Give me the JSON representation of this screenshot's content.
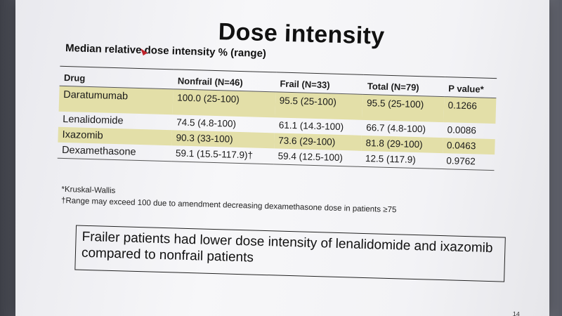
{
  "slide": {
    "title": "Dose intensity",
    "subtitle": "Median relative dose intensity % (range)",
    "page_number": "14"
  },
  "table": {
    "headers": [
      "Drug",
      "Nonfrail (N=46)",
      "Frail (N=33)",
      "Total (N=79)",
      "P value*"
    ],
    "rows": [
      {
        "drug": "Daratumumab",
        "nonfrail": "100.0 (25-100)",
        "frail": "95.5 (25-100)",
        "total": "95.5 (25-100)",
        "p": "0.1266"
      },
      {
        "drug": "Lenalidomide",
        "nonfrail": "74.5 (4.8-100)",
        "frail": "61.1 (14.3-100)",
        "total": "66.7 (4.8-100)",
        "p": "0.0086"
      },
      {
        "drug": "Ixazomib",
        "nonfrail": "90.3 (33-100)",
        "frail": "73.6 (29-100)",
        "total": "81.8 (29-100)",
        "p": "0.0463"
      },
      {
        "drug": "Dexamethasone",
        "nonfrail": "59.1 (15.5-117.9)†",
        "frail": "59.4 (12.5-100)",
        "total": "12.5 (117.9)",
        "p": "0.9762"
      }
    ]
  },
  "footnotes": {
    "f1": "*Kruskal-Wallis",
    "f2": "†Range may exceed 100 due to amendment decreasing dexamethasone dose in patients ≥75"
  },
  "callout": {
    "text": "Frailer patients had lower dose intensity of lenalidomide and ixazomib compared to nonfrail patients"
  },
  "colors": {
    "row_highlight": "#e3dfa8",
    "laser_pointer": "#c0232b"
  }
}
